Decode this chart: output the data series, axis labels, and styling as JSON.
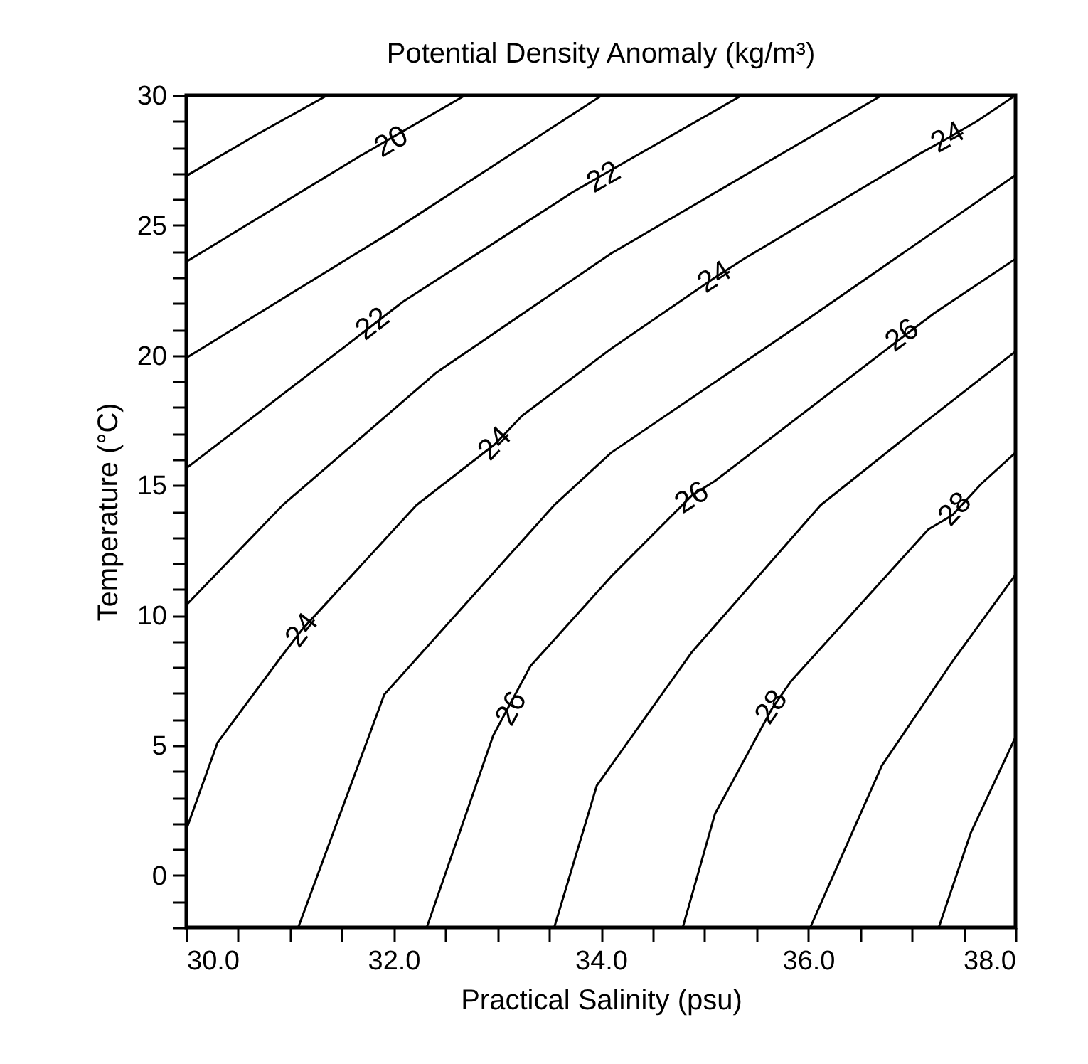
{
  "chart_data": {
    "type": "line",
    "title": "Potential Density Anomaly (kg/m³)",
    "xlabel": "Practical Salinity (psu)",
    "ylabel": "Temperature (°C)",
    "xlim": [
      30,
      38
    ],
    "ylim": [
      -2,
      30
    ],
    "xticks": [
      {
        "value": 30,
        "label": "30.0"
      },
      {
        "value": 30.5,
        "label": null
      },
      {
        "value": 31,
        "label": null
      },
      {
        "value": 31.5,
        "label": null
      },
      {
        "value": 32,
        "label": "32.0"
      },
      {
        "value": 32.5,
        "label": null
      },
      {
        "value": 33,
        "label": null
      },
      {
        "value": 33.5,
        "label": null
      },
      {
        "value": 34,
        "label": "34.0"
      },
      {
        "value": 34.5,
        "label": null
      },
      {
        "value": 35,
        "label": null
      },
      {
        "value": 35.5,
        "label": null
      },
      {
        "value": 36,
        "label": "36.0"
      },
      {
        "value": 36.5,
        "label": null
      },
      {
        "value": 37,
        "label": null
      },
      {
        "value": 37.5,
        "label": null
      },
      {
        "value": 38,
        "label": "38.0"
      }
    ],
    "yticks": [
      {
        "value": -2,
        "label": null
      },
      {
        "value": -1,
        "label": null
      },
      0,
      {
        "value": 1,
        "label": null
      },
      {
        "value": 2,
        "label": null
      },
      {
        "value": 3,
        "label": null
      },
      {
        "value": 4,
        "label": null
      },
      5,
      {
        "value": 6,
        "label": null
      },
      {
        "value": 7,
        "label": null
      },
      {
        "value": 8,
        "label": null
      },
      {
        "value": 9,
        "label": null
      },
      10,
      {
        "value": 11,
        "label": null
      },
      {
        "value": 12,
        "label": null
      },
      {
        "value": 13,
        "label": null
      },
      {
        "value": 14,
        "label": null
      },
      15,
      {
        "value": 16,
        "label": null
      },
      {
        "value": 17,
        "label": null
      },
      {
        "value": 18,
        "label": null
      },
      {
        "value": 19,
        "label": null
      },
      20,
      {
        "value": 21,
        "label": null
      },
      {
        "value": 22,
        "label": null
      },
      {
        "value": 23,
        "label": null
      },
      {
        "value": 24,
        "label": null
      },
      25,
      {
        "value": 26,
        "label": null
      },
      {
        "value": 27,
        "label": null
      },
      {
        "value": 28,
        "label": null
      },
      {
        "value": 29,
        "label": null
      },
      30
    ],
    "grid": false,
    "legend": false,
    "marker": "none",
    "line_style": "solid",
    "series": [
      {
        "color": "#000000",
        "x": [
          30,
          30.67,
          31.36
        ],
        "values": [
          26.9,
          28.47,
          30
        ]
      },
      {
        "color": "#000000",
        "x": [
          30,
          31.67,
          32.69
        ],
        "values": [
          23.6,
          27.65,
          30
        ]
      },
      {
        "color": "#000000",
        "x": [
          30,
          32.0,
          34.01
        ],
        "values": [
          19.9,
          24.8,
          30
        ]
      },
      {
        "color": "#000000",
        "x": [
          30,
          31.54,
          32.09,
          33.73,
          34.28,
          35.36
        ],
        "values": [
          15.66,
          20.37,
          22.06,
          26.28,
          27.54,
          30
        ]
      },
      {
        "color": "#000000",
        "x": [
          30,
          30.93,
          32.41,
          34.1,
          36.71
        ],
        "values": [
          10.4,
          14.24,
          19.33,
          23.92,
          30
        ]
      },
      {
        "color": "#000000",
        "x": [
          30,
          30.3,
          30.91,
          31.12,
          32.22,
          32.98,
          33.24,
          34.1,
          35.1,
          35.38,
          37.08,
          37.35,
          37.63,
          38
        ],
        "values": [
          1.76,
          5.1,
          8.38,
          9.47,
          14.24,
          16.59,
          17.68,
          20.26,
          22.99,
          23.71,
          27.76,
          28.36,
          29.01,
          30
        ]
      },
      {
        "color": "#000000",
        "x": [
          31.08,
          31.91,
          33.55,
          34.1,
          35.98,
          38
        ],
        "values": [
          -2,
          6.96,
          14.24,
          16.26,
          21.35,
          26.93
        ]
      },
      {
        "color": "#000000",
        "x": [
          32.32,
          32.96,
          33.32,
          34.1,
          34.88,
          35.1,
          36.91,
          37.22,
          38
        ],
        "values": [
          -2,
          5.37,
          8.05,
          11.5,
          14.62,
          15.17,
          20.7,
          21.63,
          23.71
        ]
      },
      {
        "color": "#000000",
        "x": [
          33.55,
          33.96,
          34.88,
          36.12,
          36.98,
          38
        ],
        "values": [
          -2,
          3.45,
          8.6,
          14.24,
          16.97,
          20.15
        ]
      },
      {
        "color": "#000000",
        "x": [
          34.79,
          35.1,
          35.65,
          35.84,
          37.16,
          37.39,
          37.67,
          38
        ],
        "values": [
          -2,
          2.36,
          6.41,
          7.5,
          13.31,
          13.85,
          15.06,
          16.26
        ]
      },
      {
        "color": "#000000",
        "x": [
          36.02,
          36.71,
          37.39,
          38
        ],
        "values": [
          -2,
          4.22,
          8.22,
          11.56
        ]
      },
      {
        "color": "#000000",
        "x": [
          37.26,
          37.57,
          38
        ],
        "values": [
          -2,
          1.65,
          5.32
        ]
      }
    ],
    "annotations": [
      {
        "text": "20",
        "x": 31.98,
        "y": 28.19
      },
      {
        "text": "22",
        "x": 31.8,
        "y": 21.19
      },
      {
        "text": "22",
        "x": 34.03,
        "y": 26.83
      },
      {
        "text": "24",
        "x": 32.98,
        "y": 16.59
      },
      {
        "text": "24",
        "x": 35.1,
        "y": 22.99
      },
      {
        "text": "24",
        "x": 37.35,
        "y": 28.36
      },
      {
        "text": "24",
        "x": 31.12,
        "y": 9.42
      },
      {
        "text": "26",
        "x": 33.14,
        "y": 6.41
      },
      {
        "text": "26",
        "x": 34.88,
        "y": 14.51
      },
      {
        "text": "26",
        "x": 36.91,
        "y": 20.75
      },
      {
        "text": "28",
        "x": 35.65,
        "y": 6.46
      },
      {
        "text": "28",
        "x": 37.42,
        "y": 14.07
      }
    ]
  }
}
